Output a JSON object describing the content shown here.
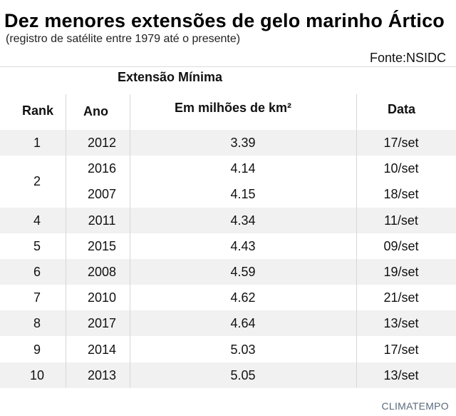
{
  "title": "Dez menores extensões de gelo marinho Ártico",
  "subtitle": "(registro de satélite entre 1979 até o presente)",
  "source": "Fonte:NSIDC",
  "brand": "CLIMATEMPO",
  "headers": {
    "group": "Extensão Mínima",
    "rank": "Rank",
    "ano": "Ano",
    "extent": "Em milhões de km²",
    "data": "Data"
  },
  "chart_data": {
    "type": "table",
    "columns": [
      "Rank",
      "Ano",
      "Em milhões de km²",
      "Data"
    ],
    "rows": [
      {
        "rank": "1",
        "ano": "2012",
        "extent": "3.39",
        "data": "17/set"
      },
      {
        "rank": "2",
        "ano": "2016",
        "extent": "4.14",
        "data": "10/set"
      },
      {
        "rank": "2",
        "ano": "2007",
        "extent": "4.15",
        "data": "18/set"
      },
      {
        "rank": "4",
        "ano": "2011",
        "extent": "4.34",
        "data": "11/set"
      },
      {
        "rank": "5",
        "ano": "2015",
        "extent": "4.43",
        "data": "09/set"
      },
      {
        "rank": "6",
        "ano": "2008",
        "extent": "4.59",
        "data": "19/set"
      },
      {
        "rank": "7",
        "ano": "2010",
        "extent": "4.62",
        "data": "21/set"
      },
      {
        "rank": "8",
        "ano": "2017",
        "extent": "4.64",
        "data": "13/set"
      },
      {
        "rank": "9",
        "ano": "2014",
        "extent": "5.03",
        "data": "17/set"
      },
      {
        "rank": "10",
        "ano": "2013",
        "extent": "5.05",
        "data": "13/set"
      }
    ]
  }
}
